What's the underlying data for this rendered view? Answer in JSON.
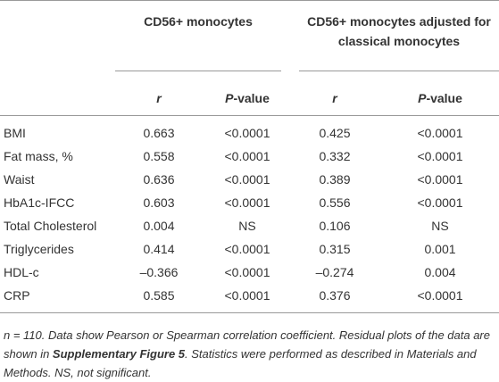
{
  "table": {
    "groups": [
      {
        "title": "CD56+ monocytes",
        "r": "r",
        "p_italic": "P",
        "p_rest": "-value"
      },
      {
        "title": "CD56+ monocytes adjusted for classical monocytes",
        "r": "r",
        "p_italic": "P",
        "p_rest": "-value"
      }
    ],
    "rows": [
      [
        "BMI",
        "0.663",
        "<0.0001",
        "0.425",
        "<0.0001"
      ],
      [
        "Fat mass, %",
        "0.558",
        "<0.0001",
        "0.332",
        "<0.0001"
      ],
      [
        "Waist",
        "0.636",
        "<0.0001",
        "0.389",
        "<0.0001"
      ],
      [
        "HbA1c-IFCC",
        "0.603",
        "<0.0001",
        "0.556",
        "<0.0001"
      ],
      [
        "Total Cholesterol",
        "0.004",
        "NS",
        "0.106",
        "NS"
      ],
      [
        "Triglycerides",
        "0.414",
        "<0.0001",
        "0.315",
        "0.001"
      ],
      [
        "HDL-c",
        "–0.366",
        "<0.0001",
        "–0.274",
        "0.004"
      ],
      [
        "CRP",
        "0.585",
        "<0.0001",
        "0.376",
        "<0.0001"
      ]
    ],
    "note": {
      "n": "n",
      "part1": " = 110. Data show Pearson or Spearman correlation coefficient. Residual plots of the data are shown in ",
      "ref": "Supplementary Figure 5",
      "part2": ". Statistics were performed as described in Materials and Methods. NS, not significant."
    }
  }
}
